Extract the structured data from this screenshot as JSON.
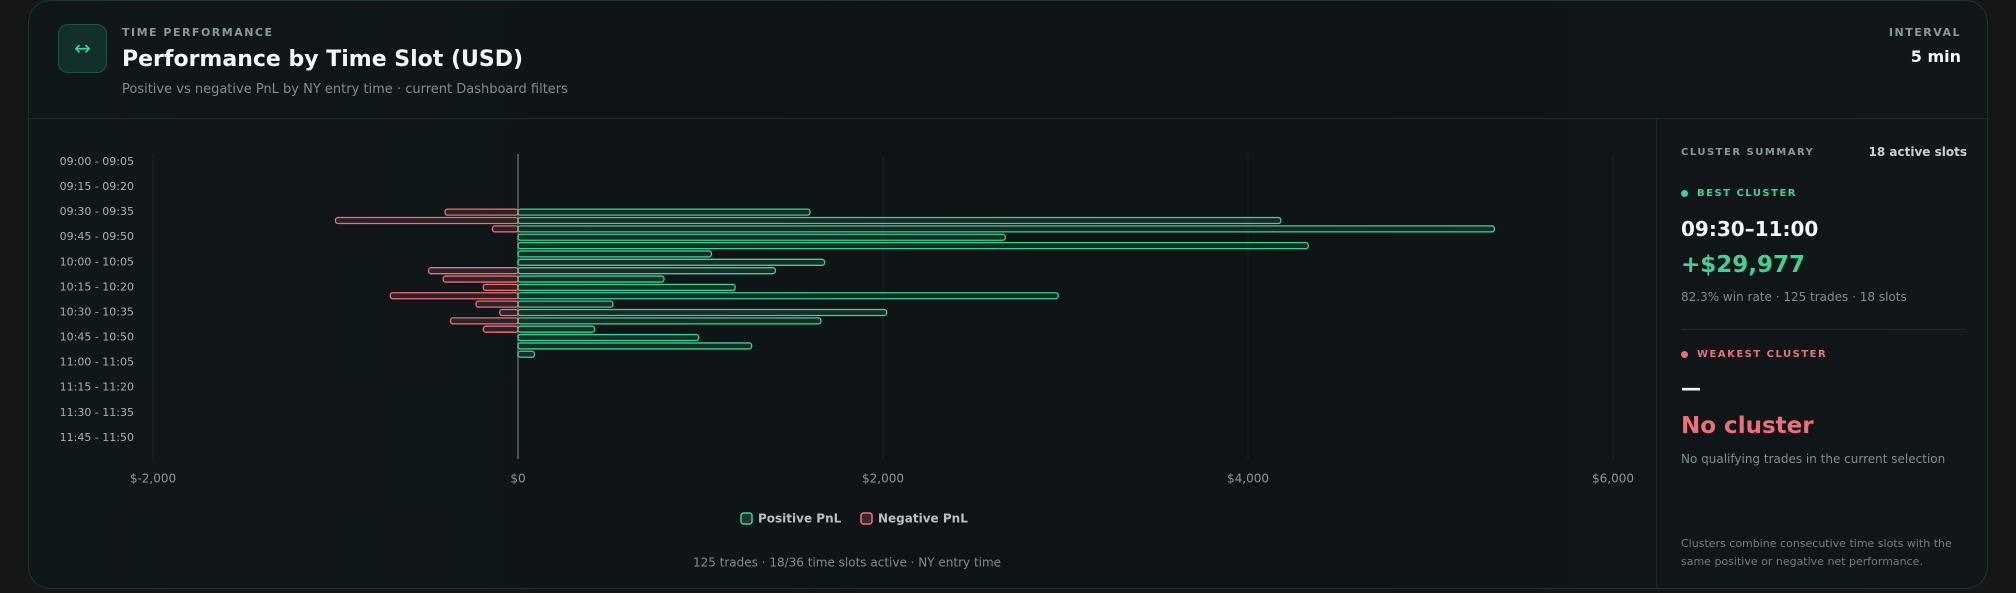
{
  "header": {
    "kicker": "TIME PERFORMANCE",
    "title": "Performance by Time Slot (USD)",
    "subtitle": "Positive vs negative PnL by NY entry time · current Dashboard filters",
    "interval_label": "INTERVAL",
    "interval_value": "5 min"
  },
  "chart_data": {
    "type": "bar",
    "orientation": "horizontal",
    "categories": [
      "09:00 - 09:05",
      null,
      null,
      "09:15 - 09:20",
      null,
      null,
      "09:30 - 09:35",
      null,
      null,
      "09:45 - 09:50",
      null,
      null,
      "10:00 - 10:05",
      null,
      null,
      "10:15 - 10:20",
      null,
      null,
      "10:30 - 10:35",
      null,
      null,
      "10:45 - 10:50",
      null,
      null,
      "11:00 - 11:05",
      null,
      null,
      "11:15 - 11:20",
      null,
      null,
      "11:30 - 11:35",
      null,
      null,
      "11:45 - 11:50",
      null,
      null
    ],
    "series": [
      {
        "name": "Positive PnL",
        "color": "#3fd196",
        "values": [
          null,
          null,
          null,
          null,
          null,
          null,
          1600,
          4180,
          5350,
          2670,
          4330,
          1060,
          1680,
          1410,
          800,
          1190,
          2960,
          520,
          2020,
          1660,
          420,
          990,
          1280,
          90,
          null,
          null,
          null,
          null,
          null,
          null,
          null,
          null,
          null,
          null,
          null,
          null
        ]
      },
      {
        "name": "Negative PnL",
        "color": "#ee6f7c",
        "values": [
          null,
          null,
          null,
          null,
          null,
          null,
          -400,
          -1000,
          -140,
          null,
          null,
          null,
          null,
          -490,
          -410,
          -190,
          -700,
          -230,
          -100,
          -370,
          -190,
          null,
          null,
          null,
          null,
          null,
          null,
          null,
          null,
          null,
          null,
          null,
          null,
          null,
          null,
          null
        ]
      }
    ],
    "xlim": [
      -2000,
      6000
    ],
    "xticks": [
      {
        "value": -2000,
        "label": "$-2,000"
      },
      {
        "value": 0,
        "label": "$0"
      },
      {
        "value": 2000,
        "label": "$2,000"
      },
      {
        "value": 4000,
        "label": "$4,000"
      },
      {
        "value": 6000,
        "label": "$6,000"
      }
    ],
    "grid": true,
    "footnote": "125 trades · 18/36 time slots active · NY entry time"
  },
  "summary": {
    "title": "CLUSTER SUMMARY",
    "active": "18 active slots",
    "best": {
      "label": "BEST CLUSTER",
      "range": "09:30–11:00",
      "value": "+$29,977",
      "stats": "82.3% win rate · 125 trades · 18 slots"
    },
    "weakest": {
      "label": "WEAKEST CLUSTER",
      "range": "—",
      "value": "No cluster",
      "stats": "No qualifying trades in the current selection"
    },
    "note": "Clusters combine consecutive time slots with the same positive or negative net performance."
  }
}
